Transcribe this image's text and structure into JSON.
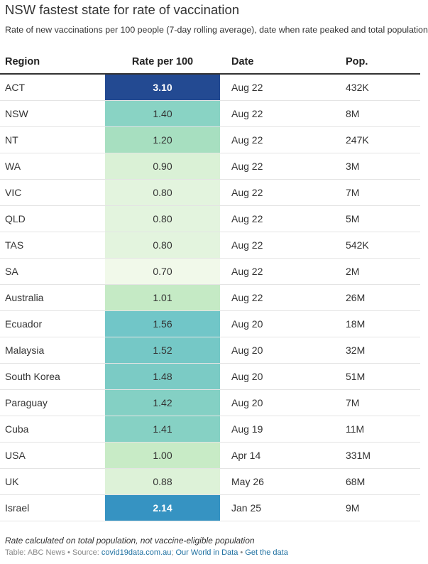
{
  "chart_data": {
    "type": "table",
    "title": "NSW fastest state for rate of vaccination",
    "subtitle": "Rate of new vaccinations per 100 people (7-day rolling average), date when rate peaked and total population",
    "columns": [
      "Region",
      "Rate per 100",
      "Date",
      "Pop."
    ],
    "rows": [
      {
        "region": "ACT",
        "rate": "3.10",
        "date": "Aug 22",
        "pop": "432K",
        "value": 3.1,
        "fill": "#234a92",
        "text_color": "#ffffff",
        "bold": true
      },
      {
        "region": "NSW",
        "rate": "1.40",
        "date": "Aug 22",
        "pop": "8M",
        "value": 1.4,
        "fill": "#89d3c4",
        "text_color": "#333333",
        "bold": false
      },
      {
        "region": "NT",
        "rate": "1.20",
        "date": "Aug 22",
        "pop": "247K",
        "value": 1.2,
        "fill": "#a7dfc0",
        "text_color": "#333333",
        "bold": false
      },
      {
        "region": "WA",
        "rate": "0.90",
        "date": "Aug 22",
        "pop": "3M",
        "value": 0.9,
        "fill": "#daf1d6",
        "text_color": "#333333",
        "bold": false
      },
      {
        "region": "VIC",
        "rate": "0.80",
        "date": "Aug 22",
        "pop": "7M",
        "value": 0.8,
        "fill": "#e3f4de",
        "text_color": "#333333",
        "bold": false
      },
      {
        "region": "QLD",
        "rate": "0.80",
        "date": "Aug 22",
        "pop": "5M",
        "value": 0.8,
        "fill": "#e3f4de",
        "text_color": "#333333",
        "bold": false
      },
      {
        "region": "TAS",
        "rate": "0.80",
        "date": "Aug 22",
        "pop": "542K",
        "value": 0.8,
        "fill": "#e3f4de",
        "text_color": "#333333",
        "bold": false
      },
      {
        "region": "SA",
        "rate": "0.70",
        "date": "Aug 22",
        "pop": "2M",
        "value": 0.7,
        "fill": "#f1f9ea",
        "text_color": "#333333",
        "bold": false
      },
      {
        "region": "Australia",
        "rate": "1.01",
        "date": "Aug 22",
        "pop": "26M",
        "value": 1.01,
        "fill": "#c5eac5",
        "text_color": "#333333",
        "bold": false
      },
      {
        "region": "Ecuador",
        "rate": "1.56",
        "date": "Aug 20",
        "pop": "18M",
        "value": 1.56,
        "fill": "#71c6c8",
        "text_color": "#333333",
        "bold": false
      },
      {
        "region": "Malaysia",
        "rate": "1.52",
        "date": "Aug 20",
        "pop": "32M",
        "value": 1.52,
        "fill": "#75c8c6",
        "text_color": "#333333",
        "bold": false
      },
      {
        "region": "South Korea",
        "rate": "1.48",
        "date": "Aug 20",
        "pop": "51M",
        "value": 1.48,
        "fill": "#7bcbc5",
        "text_color": "#333333",
        "bold": false
      },
      {
        "region": "Paraguay",
        "rate": "1.42",
        "date": "Aug 20",
        "pop": "7M",
        "value": 1.42,
        "fill": "#84d0c4",
        "text_color": "#333333",
        "bold": false
      },
      {
        "region": "Cuba",
        "rate": "1.41",
        "date": "Aug 19",
        "pop": "11M",
        "value": 1.41,
        "fill": "#86d1c4",
        "text_color": "#333333",
        "bold": false
      },
      {
        "region": "USA",
        "rate": "1.00",
        "date": "Apr 14",
        "pop": "331M",
        "value": 1.0,
        "fill": "#c8ebc6",
        "text_color": "#333333",
        "bold": false
      },
      {
        "region": "UK",
        "rate": "0.88",
        "date": "May 26",
        "pop": "68M",
        "value": 0.88,
        "fill": "#ddf2d8",
        "text_color": "#333333",
        "bold": false
      },
      {
        "region": "Israel",
        "rate": "2.14",
        "date": "Jan 25",
        "pop": "9M",
        "value": 2.14,
        "fill": "#3693c2",
        "text_color": "#ffffff",
        "bold": true
      }
    ]
  },
  "footnote": "Rate calculated on total population, not vaccine-eligible population",
  "credit": {
    "prefix": "Table: ABC News • Source: ",
    "source_1": "covid19data.com.au",
    "separator": "; ",
    "source_2": "Our World in Data",
    "bullet": " • ",
    "get_data": "Get the data"
  }
}
